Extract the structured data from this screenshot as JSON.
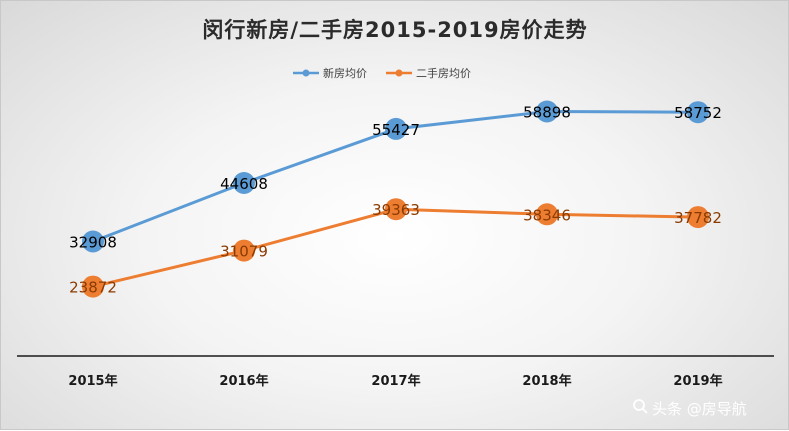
{
  "chart_data": {
    "type": "line",
    "title": "闵行新房/二手房2015-2019房价走势",
    "categories": [
      "2015年",
      "2016年",
      "2017年",
      "2018年",
      "2019年"
    ],
    "series": [
      {
        "name": "新房均价",
        "values": [
          32908,
          44608,
          55427,
          58898,
          58752
        ],
        "color": "#5b9bd5"
      },
      {
        "name": "二手房均价",
        "values": [
          23872,
          31079,
          39363,
          38346,
          37782
        ],
        "color": "#ed7d31"
      }
    ],
    "legend_position": "top",
    "grid": false,
    "data_labels": true
  },
  "watermark": "头条 @房导航",
  "watermark_icon": "search-icon"
}
